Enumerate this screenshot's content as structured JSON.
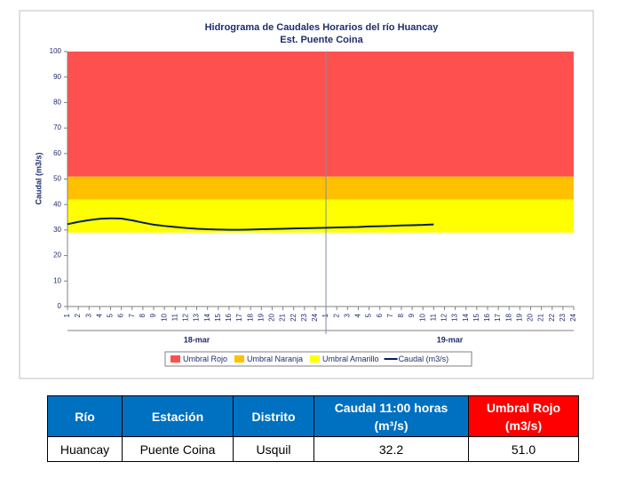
{
  "chart_data": {
    "type": "hydrograph",
    "title": "Hidrograma de Caudales Horarios del río Huancay",
    "subtitle": "Est. Puente Coina",
    "y_label": "Caudal  (m3/s)",
    "ylim": [
      0,
      100
    ],
    "yticks": [
      0,
      10,
      20,
      30,
      40,
      50,
      60,
      70,
      80,
      90,
      100
    ],
    "categories": [
      "1",
      "2",
      "3",
      "4",
      "5",
      "6",
      "7",
      "8",
      "9",
      "10",
      "11",
      "12",
      "13",
      "14",
      "15",
      "16",
      "17",
      "18",
      "19",
      "20",
      "21",
      "22",
      "23",
      "24",
      "1",
      "2",
      "3",
      "4",
      "5",
      "6",
      "7",
      "8",
      "9",
      "10",
      "11",
      "12",
      "13",
      "14",
      "15",
      "16",
      "17",
      "18",
      "19",
      "20",
      "21",
      "22",
      "23",
      "24"
    ],
    "groups": [
      {
        "label": "18-mar",
        "size": 24
      },
      {
        "label": "19-mar",
        "size": 24
      }
    ],
    "thresholds": [
      {
        "name": "Umbral Rojo",
        "color": "#ff5050",
        "value": 51
      },
      {
        "name": "Umbral Naranja",
        "color": "#ffc000",
        "value": 42
      },
      {
        "name": "Umbral Amarillo",
        "color": "#ffff00",
        "value": 29
      }
    ],
    "series": [
      {
        "name": "Caudal (m3/s)",
        "color": "#002060",
        "values": [
          32.3,
          33.2,
          33.9,
          34.4,
          34.6,
          34.5,
          33.8,
          32.9,
          32.1,
          31.6,
          31.2,
          30.8,
          30.5,
          30.3,
          30.2,
          30.1,
          30.1,
          30.2,
          30.3,
          30.4,
          30.5,
          30.6,
          30.7,
          30.8,
          30.9,
          31.0,
          31.1,
          31.2,
          31.4,
          31.5,
          31.6,
          31.8,
          31.9,
          32.0,
          32.2,
          null,
          null,
          null,
          null,
          null,
          null,
          null,
          null,
          null,
          null,
          null,
          null,
          null
        ]
      }
    ]
  },
  "table": {
    "headers": [
      "Río",
      "Estación",
      "Distrito",
      "Caudal  11:00 horas\n(m³/s)",
      "Umbral Rojo\n(m3/s)"
    ],
    "rows": [
      [
        "Huancay",
        "Puente Coina",
        "Usquil",
        "32.2",
        "51.0"
      ]
    ]
  }
}
